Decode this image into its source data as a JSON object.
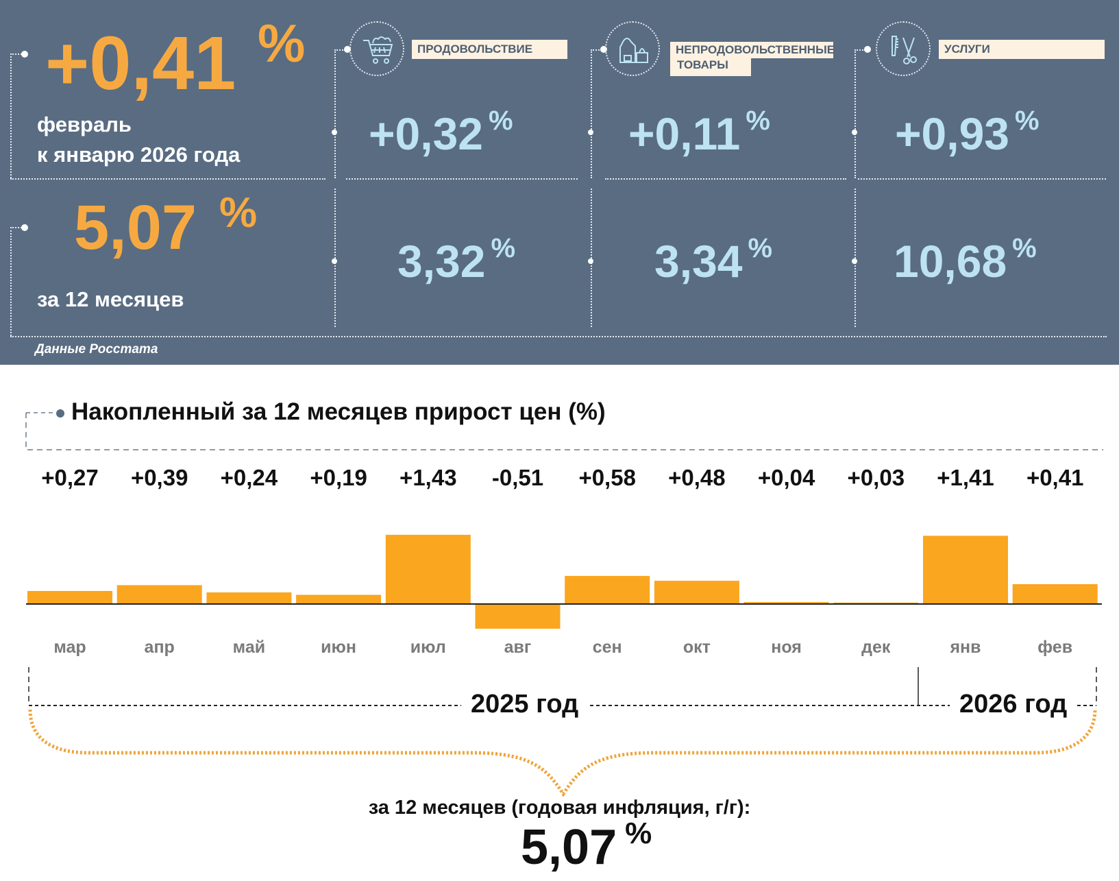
{
  "headline": {
    "monthly_value": "+0,41",
    "monthly_unit": "%",
    "monthly_label_line1": "февраль",
    "monthly_label_line2": "к январю 2026 года",
    "annual_value": "5,07",
    "annual_unit": "%",
    "annual_label": "за 12 месяцев"
  },
  "categories": [
    {
      "name": "ПРОДОВОЛЬСТВИЕ",
      "icon": "shopping-cart-icon",
      "monthly": "+0,32",
      "annual": "3,32",
      "unit": "%"
    },
    {
      "name_line1": "НЕПРОДОВОЛЬСТВЕННЫЕ",
      "name_line2": "ТОВАРЫ",
      "icon": "clothes-bag-icon",
      "monthly": "+0,11",
      "annual": "3,34",
      "unit": "%"
    },
    {
      "name": "УСЛУГИ",
      "icon": "comb-scissors-icon",
      "monthly": "+0,93",
      "annual": "10,68",
      "unit": "%"
    }
  ],
  "source": "Данные Росстата",
  "colors": {
    "panel": "#596c82",
    "accent_orange": "#f7a941",
    "bar_orange": "#fba61f",
    "value_blue": "#bde3f2",
    "label_bg": "#fdf2e2"
  },
  "chart_data": {
    "type": "bar",
    "title": "Накопленный за 12 месяцев прирост цен (%)",
    "categories": [
      "мар",
      "апр",
      "май",
      "июн",
      "июл",
      "авг",
      "сен",
      "окт",
      "ноя",
      "дек",
      "янв",
      "фев"
    ],
    "values": [
      0.27,
      0.39,
      0.24,
      0.19,
      1.43,
      -0.51,
      0.58,
      0.48,
      0.04,
      0.03,
      1.41,
      0.41
    ],
    "value_labels": [
      "+0,27",
      "+0,39",
      "+0,24",
      "+0,19",
      "+1,43",
      "-0,51",
      "+0,58",
      "+0,48",
      "+0,04",
      "+0,03",
      "+1,41",
      "+0,41"
    ],
    "xlabel": "",
    "ylabel": "",
    "ylim": [
      -0.6,
      1.5
    ],
    "grid": false,
    "year_groups": [
      {
        "label": "2025 год",
        "months": 10
      },
      {
        "label": "2026 год",
        "months": 2
      }
    ],
    "total_label": "за 12 месяцев (годовая инфляция, г/г):",
    "total_value": "5,07",
    "total_unit": "%"
  }
}
